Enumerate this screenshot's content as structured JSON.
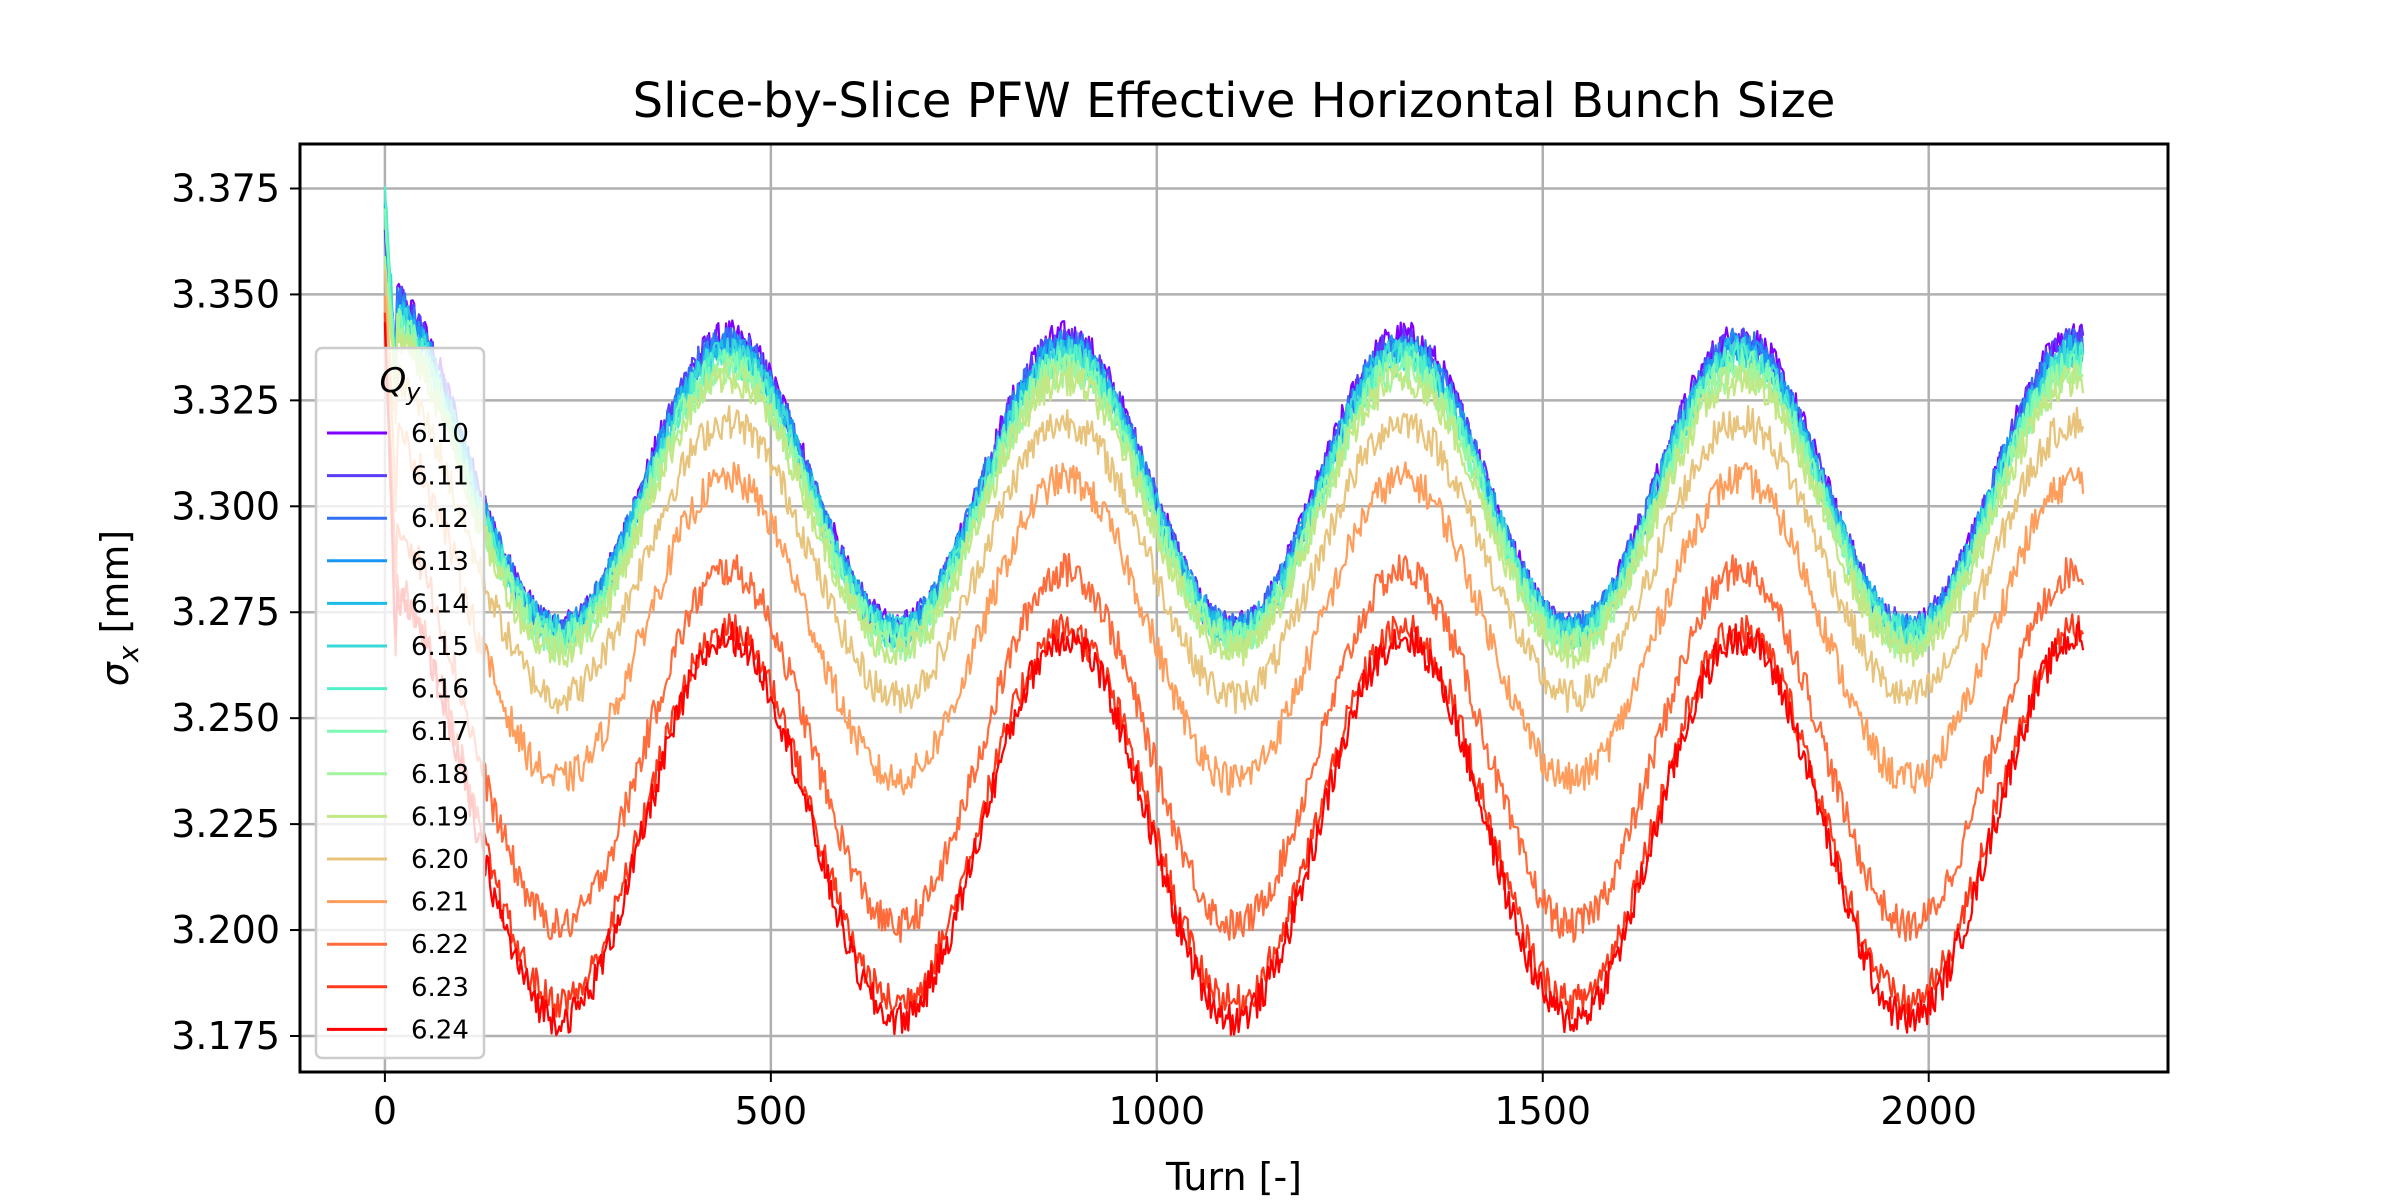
{
  "chart_data": {
    "type": "line",
    "title": "Slice-by-Slice PFW Effective Horizontal Bunch Size",
    "xlabel": "Turn [-]",
    "ylabel_symbol": "σ",
    "ylabel_subscript": "x",
    "ylabel_unit": " [mm]",
    "xlim": [
      -110,
      2310
    ],
    "ylim": [
      3.1665,
      3.3855
    ],
    "xticks": [
      0,
      500,
      1000,
      1500,
      2000
    ],
    "yticks": [
      3.175,
      3.2,
      3.225,
      3.25,
      3.275,
      3.3,
      3.325,
      3.35,
      3.375
    ],
    "ytick_labels": [
      "3.175",
      "3.200",
      "3.225",
      "3.250",
      "3.275",
      "3.300",
      "3.325",
      "3.350",
      "3.375"
    ],
    "grid": true,
    "legend": {
      "title_symbol": "Q",
      "title_subscript": "y",
      "placement": "left"
    },
    "oscillation_period_turns": 437,
    "noise_amplitude_mm": 0.004,
    "x_range": [
      0,
      2200
    ],
    "series": [
      {
        "name": "6.10",
        "color": "#8000ff",
        "baseline": 3.3055,
        "amplitude": 0.0345,
        "start_peak": 3.364
      },
      {
        "name": "6.11",
        "color": "#5a3cfb",
        "baseline": 3.305,
        "amplitude": 0.034,
        "start_peak": 3.362
      },
      {
        "name": "6.12",
        "color": "#3470f3",
        "baseline": 3.3045,
        "amplitude": 0.0338,
        "start_peak": 3.366
      },
      {
        "name": "6.13",
        "color": "#1996f3",
        "baseline": 3.304,
        "amplitude": 0.0335,
        "start_peak": 3.368
      },
      {
        "name": "6.14",
        "color": "#1cbde6",
        "baseline": 3.3035,
        "amplitude": 0.0332,
        "start_peak": 3.37
      },
      {
        "name": "6.15",
        "color": "#3ad8d8",
        "baseline": 3.303,
        "amplitude": 0.033,
        "start_peak": 3.375
      },
      {
        "name": "6.16",
        "color": "#52f0c8",
        "baseline": 3.302,
        "amplitude": 0.0328,
        "start_peak": 3.372
      },
      {
        "name": "6.17",
        "color": "#7ffab5",
        "baseline": 3.301,
        "amplitude": 0.0326,
        "start_peak": 3.368
      },
      {
        "name": "6.18",
        "color": "#a2f59d",
        "baseline": 3.2995,
        "amplitude": 0.0324,
        "start_peak": 3.362
      },
      {
        "name": "6.19",
        "color": "#c2e885",
        "baseline": 3.298,
        "amplitude": 0.0322,
        "start_peak": 3.358
      },
      {
        "name": "6.20",
        "color": "#e8c37b",
        "baseline": 3.2875,
        "amplitude": 0.0325,
        "start_peak": 3.352
      },
      {
        "name": "6.21",
        "color": "#ff9e5c",
        "baseline": 3.271,
        "amplitude": 0.0355,
        "start_peak": 3.348
      },
      {
        "name": "6.22",
        "color": "#ff6b3a",
        "baseline": 3.243,
        "amplitude": 0.042,
        "start_peak": 3.346
      },
      {
        "name": "6.23",
        "color": "#ff3a1c",
        "baseline": 3.227,
        "amplitude": 0.044,
        "start_peak": 3.345
      },
      {
        "name": "6.24",
        "color": "#ff0000",
        "baseline": 3.224,
        "amplitude": 0.045,
        "start_peak": 3.345
      }
    ]
  }
}
